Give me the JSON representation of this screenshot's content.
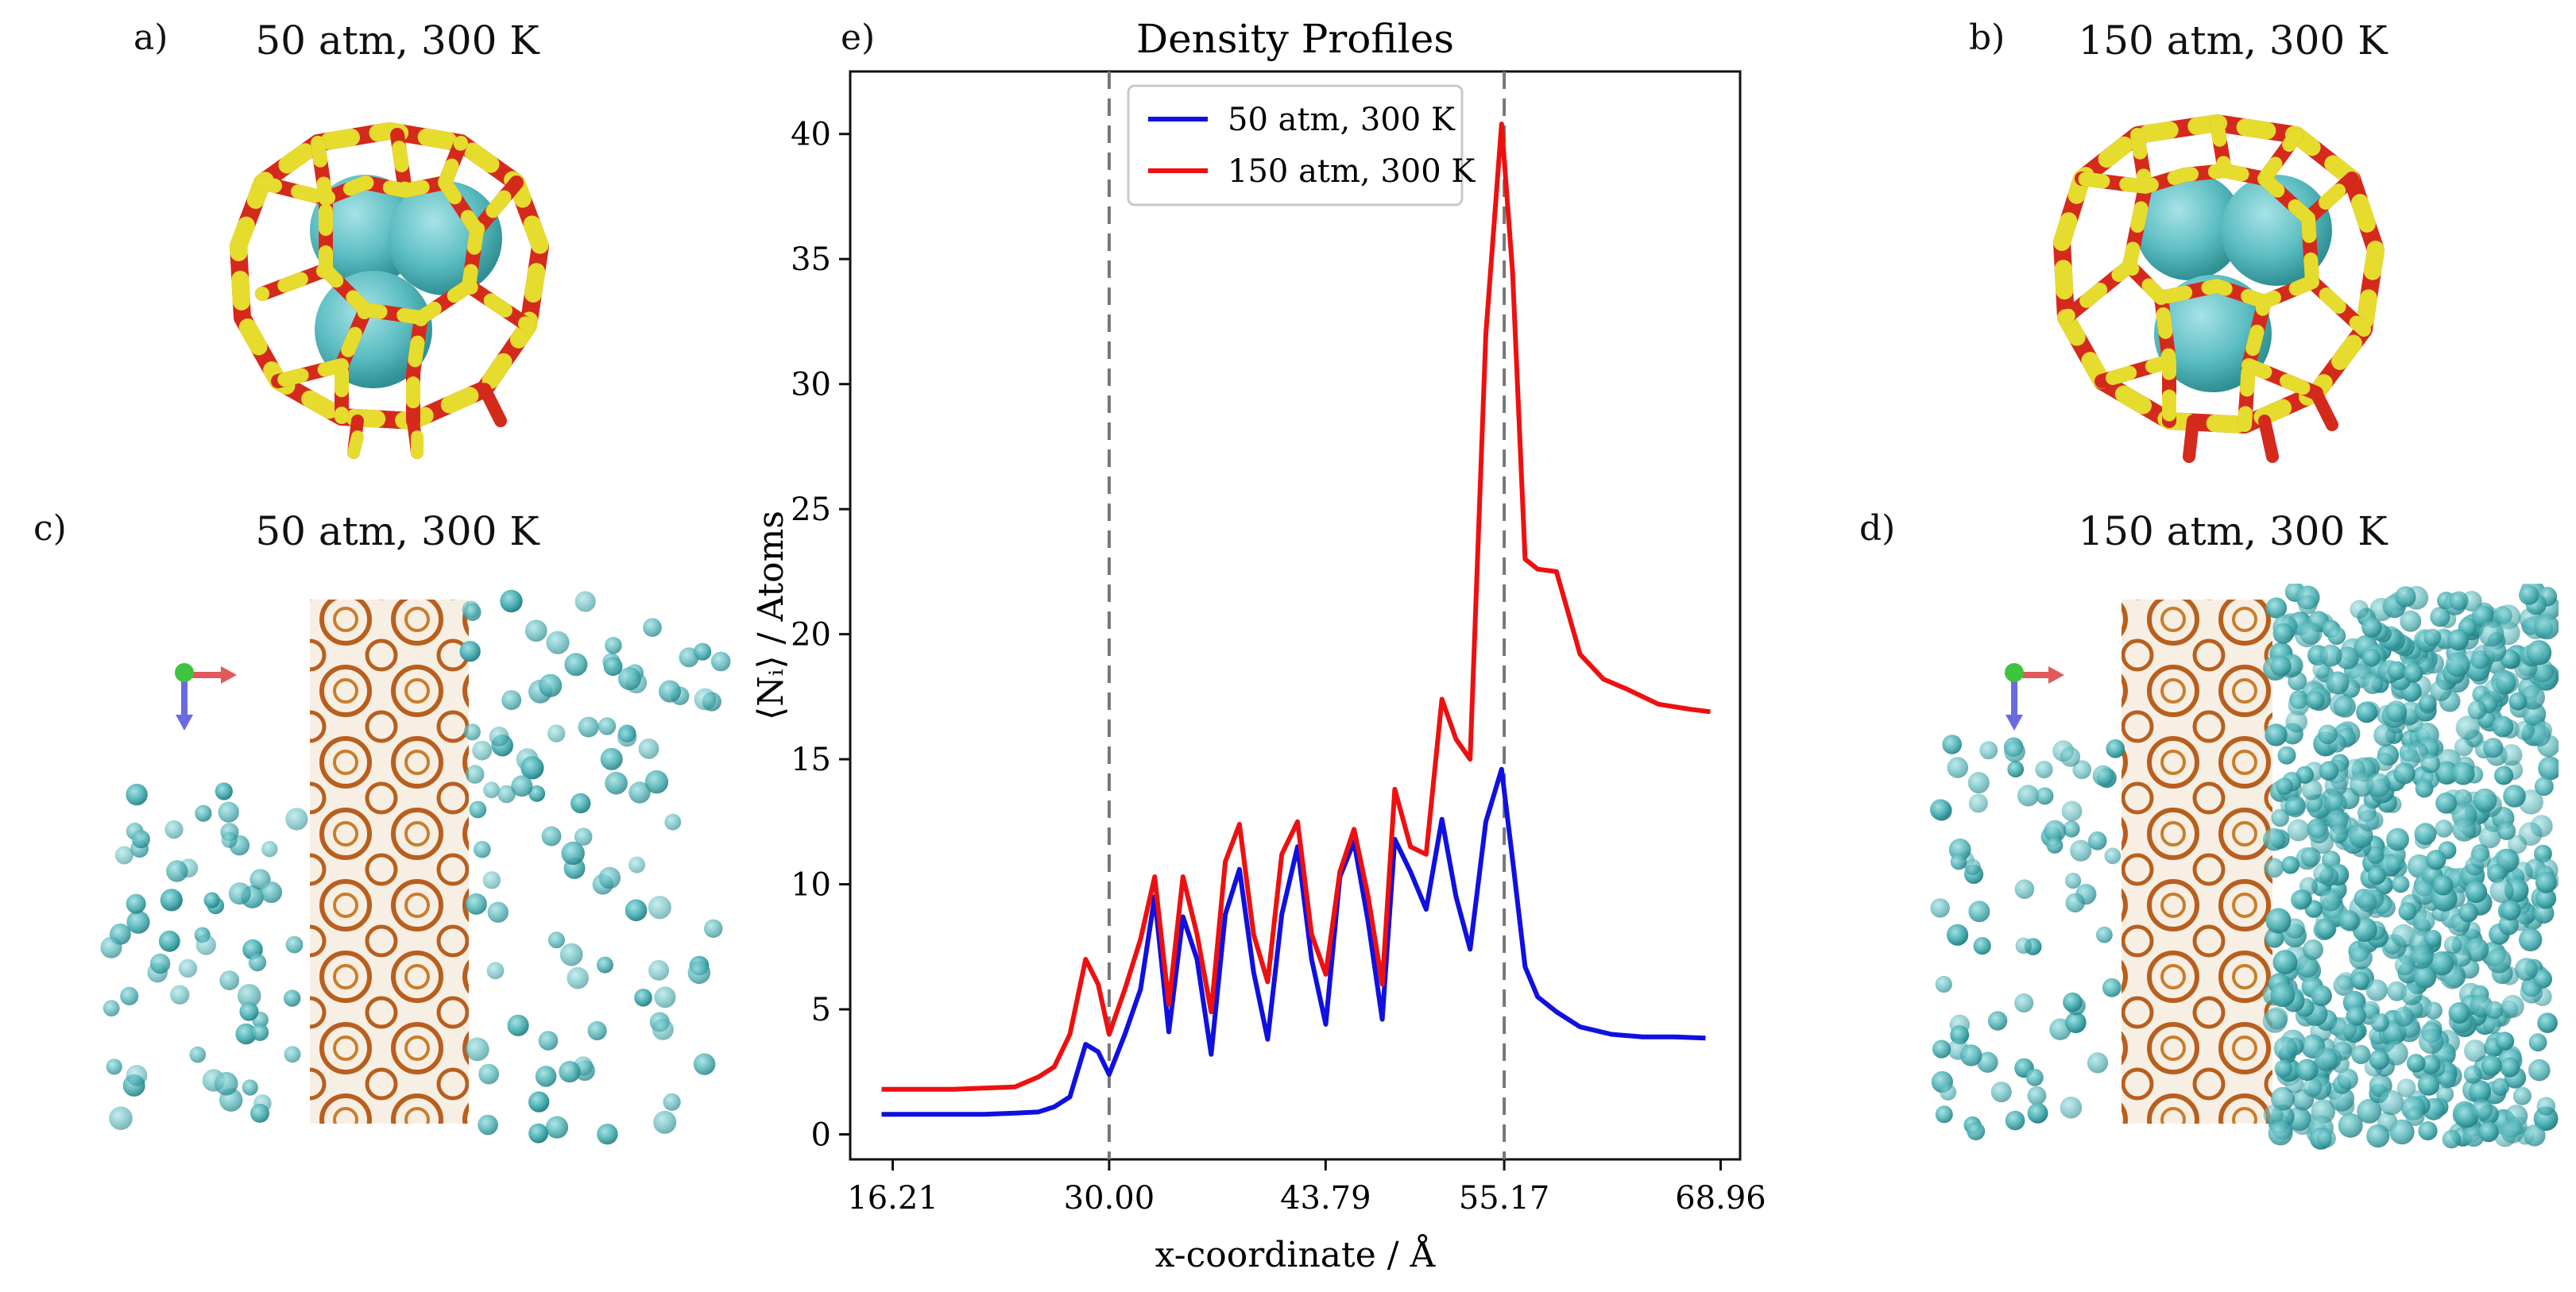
{
  "panels": {
    "a": {
      "label": "a)",
      "title": "50 atm, 300 K"
    },
    "b": {
      "label": "b)",
      "title": "150 atm, 300 K"
    },
    "c": {
      "label": "c)",
      "title": "50 atm, 300 K"
    },
    "d": {
      "label": "d)",
      "title": "150 atm, 300 K"
    },
    "e": {
      "label": "e)"
    }
  },
  "colors": {
    "red_bond": "#d42a1c",
    "yellow_atom": "#e6dc2e",
    "teal_atom": "#5bbdc2",
    "teal_dark": "#2f8f93",
    "framework": "#c46a22",
    "series_50": "#1010e0",
    "series_150": "#ee1010"
  },
  "chart_data": {
    "type": "line",
    "title": "Density Profiles",
    "xlabel": "x-coordinate / Å",
    "ylabel": "⟨Nᵢ⟩ / Atoms",
    "xlim": [
      13.5,
      70.2
    ],
    "ylim": [
      -1.0,
      42.5
    ],
    "xticks": [
      16.21,
      30.0,
      43.79,
      55.17,
      68.96
    ],
    "xtick_labels": [
      "16.21",
      "30.00",
      "43.79",
      "55.17",
      "68.96"
    ],
    "yticks": [
      0,
      5,
      10,
      15,
      20,
      25,
      30,
      35,
      40
    ],
    "ytick_labels": [
      "0",
      "5",
      "10",
      "15",
      "20",
      "25",
      "30",
      "35",
      "40"
    ],
    "vlines": [
      30.0,
      55.17
    ],
    "legend": {
      "position": "top-left",
      "entries": [
        "50 atm, 300 K",
        "150 atm, 300 K"
      ]
    },
    "series": [
      {
        "name": "50 atm, 300 K",
        "color": "#1010e0",
        "points": [
          [
            15.5,
            0.8
          ],
          [
            18,
            0.8
          ],
          [
            20,
            0.8
          ],
          [
            22,
            0.8
          ],
          [
            24,
            0.85
          ],
          [
            25.5,
            0.9
          ],
          [
            26.5,
            1.1
          ],
          [
            27.5,
            1.5
          ],
          [
            28.5,
            3.6
          ],
          [
            29.3,
            3.3
          ],
          [
            30,
            2.4
          ],
          [
            31,
            4.0
          ],
          [
            32,
            5.8
          ],
          [
            32.9,
            9.5
          ],
          [
            33.8,
            4.1
          ],
          [
            34.7,
            8.7
          ],
          [
            35.6,
            7.0
          ],
          [
            36.5,
            3.2
          ],
          [
            37.4,
            8.8
          ],
          [
            38.3,
            10.6
          ],
          [
            39.2,
            6.5
          ],
          [
            40.1,
            3.8
          ],
          [
            41,
            8.8
          ],
          [
            42,
            11.5
          ],
          [
            42.9,
            7.0
          ],
          [
            43.8,
            4.4
          ],
          [
            44.7,
            10.3
          ],
          [
            45.6,
            11.7
          ],
          [
            46.5,
            8.5
          ],
          [
            47.4,
            4.6
          ],
          [
            48.2,
            11.8
          ],
          [
            49.2,
            10.5
          ],
          [
            50.2,
            9.0
          ],
          [
            51.2,
            12.6
          ],
          [
            52.1,
            9.5
          ],
          [
            53,
            7.4
          ],
          [
            54,
            12.5
          ],
          [
            55,
            14.6
          ],
          [
            55.7,
            11.0
          ],
          [
            56.5,
            6.7
          ],
          [
            57.3,
            5.5
          ],
          [
            58.5,
            4.9
          ],
          [
            60,
            4.3
          ],
          [
            62,
            4.0
          ],
          [
            64,
            3.9
          ],
          [
            66,
            3.9
          ],
          [
            68,
            3.85
          ]
        ]
      },
      {
        "name": "150 atm, 300 K",
        "color": "#ee1010",
        "points": [
          [
            15.5,
            1.8
          ],
          [
            18,
            1.8
          ],
          [
            20,
            1.8
          ],
          [
            22,
            1.85
          ],
          [
            24,
            1.9
          ],
          [
            25.5,
            2.3
          ],
          [
            26.5,
            2.7
          ],
          [
            27.5,
            4.0
          ],
          [
            28.5,
            7.0
          ],
          [
            29.3,
            6.0
          ],
          [
            30,
            4.0
          ],
          [
            31,
            5.8
          ],
          [
            32,
            7.8
          ],
          [
            32.9,
            10.3
          ],
          [
            33.8,
            5.2
          ],
          [
            34.7,
            10.3
          ],
          [
            35.6,
            8.0
          ],
          [
            36.5,
            4.9
          ],
          [
            37.4,
            10.9
          ],
          [
            38.3,
            12.4
          ],
          [
            39.2,
            8.0
          ],
          [
            40.1,
            6.1
          ],
          [
            41,
            11.2
          ],
          [
            42,
            12.5
          ],
          [
            42.9,
            8.0
          ],
          [
            43.8,
            6.4
          ],
          [
            44.7,
            10.5
          ],
          [
            45.6,
            12.2
          ],
          [
            46.5,
            9.5
          ],
          [
            47.4,
            6.0
          ],
          [
            48.2,
            13.8
          ],
          [
            49.2,
            11.5
          ],
          [
            50.2,
            11.2
          ],
          [
            51.2,
            17.4
          ],
          [
            52.1,
            15.8
          ],
          [
            53,
            15.0
          ],
          [
            54,
            32.0
          ],
          [
            55,
            40.4
          ],
          [
            55.7,
            34.5
          ],
          [
            56.5,
            23.0
          ],
          [
            57.3,
            22.6
          ],
          [
            58.5,
            22.5
          ],
          [
            60,
            19.2
          ],
          [
            61.5,
            18.2
          ],
          [
            63,
            17.8
          ],
          [
            65,
            17.2
          ],
          [
            67,
            17.0
          ],
          [
            68.3,
            16.9
          ]
        ]
      }
    ]
  }
}
